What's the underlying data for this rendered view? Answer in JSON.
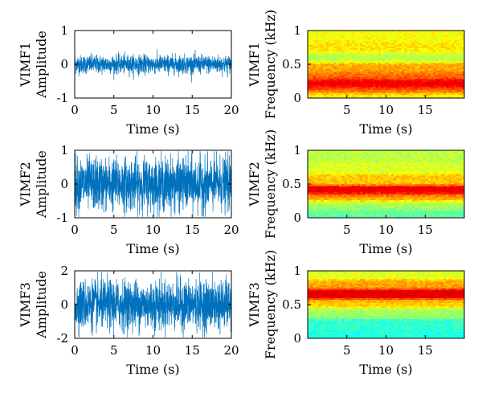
{
  "waveforms": [
    {
      "ylabel_top": "VIMF1",
      "ylabel": "Amplitude",
      "xlabel": "Time (s)",
      "ylim": [
        -1,
        1
      ],
      "xlim": [
        0,
        20
      ],
      "yticks": [
        -1,
        0,
        1
      ],
      "xticks": [
        0,
        5,
        10,
        15,
        20
      ],
      "amplitude": 0.3,
      "color": "#0072BD"
    },
    {
      "ylabel_top": "VIMF2",
      "ylabel": "Amplitude",
      "xlabel": "Time (s)",
      "ylim": [
        -1,
        1
      ],
      "xlim": [
        0,
        20
      ],
      "yticks": [
        -1,
        0,
        1
      ],
      "xticks": [
        0,
        5,
        10,
        15,
        20
      ],
      "amplitude": 0.85,
      "color": "#0072BD"
    },
    {
      "ylabel_top": "VIMF3",
      "ylabel": "Amplitude",
      "xlabel": "Time (s)",
      "ylim": [
        -2,
        2
      ],
      "xlim": [
        0,
        20
      ],
      "yticks": [
        -2,
        0,
        2
      ],
      "xticks": [
        0,
        5,
        10,
        15,
        20
      ],
      "amplitude": 1.6,
      "color": "#0072BD"
    }
  ],
  "spectrograms": [
    {
      "ylabel_top": "VIMF1",
      "ylabel": "Frequency (kHz)",
      "xlabel": "Time (s)",
      "ylim": [
        0,
        1
      ],
      "xlim": [
        0,
        20
      ],
      "yticks": [
        "0",
        "0.5",
        "1"
      ],
      "xticks": [
        5,
        10,
        15
      ],
      "bands": [
        {
          "f": 0.03,
          "v": 0.45
        },
        {
          "f": 0.12,
          "v": 0.75
        },
        {
          "f": 0.22,
          "v": 0.95
        },
        {
          "f": 0.32,
          "v": 0.7
        },
        {
          "f": 0.45,
          "v": 0.6
        },
        {
          "f": 0.6,
          "v": 0.35
        },
        {
          "f": 0.75,
          "v": 0.5
        },
        {
          "f": 0.9,
          "v": 0.45
        }
      ]
    },
    {
      "ylabel_top": "VIMF2",
      "ylabel": "Frequency (kHz)",
      "xlabel": "Time (s)",
      "ylim": [
        0,
        1
      ],
      "xlim": [
        0,
        20
      ],
      "yticks": [
        "0",
        "0.5",
        "1"
      ],
      "xticks": [
        5,
        10,
        15
      ],
      "bands": [
        {
          "f": 0.05,
          "v": 0.2
        },
        {
          "f": 0.18,
          "v": 0.3
        },
        {
          "f": 0.3,
          "v": 0.6
        },
        {
          "f": 0.4,
          "v": 0.95
        },
        {
          "f": 0.55,
          "v": 0.55
        },
        {
          "f": 0.75,
          "v": 0.4
        },
        {
          "f": 0.9,
          "v": 0.35
        }
      ]
    },
    {
      "ylabel_top": "VIMF3",
      "ylabel": "Frequency (kHz)",
      "xlabel": "Time (s)",
      "ylim": [
        0,
        1
      ],
      "xlim": [
        0,
        20
      ],
      "yticks": [
        "0",
        "0.5",
        "1"
      ],
      "xticks": [
        5,
        10,
        15
      ],
      "bands": [
        {
          "f": 0.05,
          "v": 0.1
        },
        {
          "f": 0.2,
          "v": 0.12
        },
        {
          "f": 0.38,
          "v": 0.3
        },
        {
          "f": 0.52,
          "v": 0.55
        },
        {
          "f": 0.65,
          "v": 0.98
        },
        {
          "f": 0.8,
          "v": 0.6
        },
        {
          "f": 0.95,
          "v": 0.4
        }
      ]
    }
  ],
  "colors": {
    "wave": "#0072BD",
    "axis": "#000000",
    "background": "#ffffff"
  },
  "chart_data": [
    {
      "type": "line",
      "xlabel": "Time (s)",
      "ylabel": "VIMF1 Amplitude",
      "xlim": [
        0,
        20
      ],
      "ylim": [
        -1,
        1
      ]
    },
    {
      "type": "heatmap",
      "xlabel": "Time (s)",
      "ylabel": "VIMF1 Frequency (kHz)",
      "xlim": [
        0,
        20
      ],
      "ylim": [
        0,
        1
      ]
    },
    {
      "type": "line",
      "xlabel": "Time (s)",
      "ylabel": "VIMF2 Amplitude",
      "xlim": [
        0,
        20
      ],
      "ylim": [
        -1,
        1
      ]
    },
    {
      "type": "heatmap",
      "xlabel": "Time (s)",
      "ylabel": "VIMF2 Frequency (kHz)",
      "xlim": [
        0,
        20
      ],
      "ylim": [
        0,
        1
      ]
    },
    {
      "type": "line",
      "xlabel": "Time (s)",
      "ylabel": "VIMF3 Amplitude",
      "xlim": [
        0,
        20
      ],
      "ylim": [
        -2,
        2
      ]
    },
    {
      "type": "heatmap",
      "xlabel": "Time (s)",
      "ylabel": "VIMF3 Frequency (kHz)",
      "xlim": [
        0,
        20
      ],
      "ylim": [
        0,
        1
      ]
    }
  ]
}
